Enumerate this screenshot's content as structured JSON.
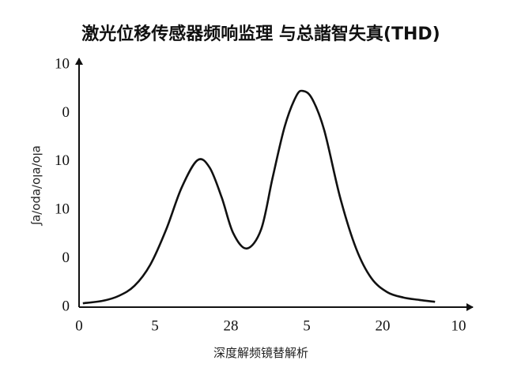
{
  "chart_data": {
    "type": "line",
    "title": "激光位移传感器频响监理 与总諧智失真(THD)",
    "x_label": "深度解频镜替解析",
    "y_label": "ɐlo/ɐlo/ɐpo/ɐʃ",
    "xlim": [
      0,
      5
    ],
    "ylim": [
      0,
      5
    ],
    "xticks": [
      {
        "value": 0,
        "label": "0"
      },
      {
        "value": 1,
        "label": "5"
      },
      {
        "value": 2,
        "label": "28"
      },
      {
        "value": 3,
        "label": "5"
      },
      {
        "value": 4,
        "label": "20"
      },
      {
        "value": 5,
        "label": "10"
      }
    ],
    "yticks": [
      {
        "value": 0,
        "label": "0"
      },
      {
        "value": 1,
        "label": "0"
      },
      {
        "value": 2,
        "label": "10"
      },
      {
        "value": 3,
        "label": "10"
      },
      {
        "value": 4,
        "label": "0"
      },
      {
        "value": 5,
        "label": "10"
      }
    ],
    "color": "#111111",
    "x": [
      0.05,
      0.31,
      0.52,
      0.73,
      0.94,
      1.15,
      1.35,
      1.56,
      1.72,
      1.88,
      2.03,
      2.21,
      2.4,
      2.55,
      2.71,
      2.86,
      2.95,
      3.07,
      3.23,
      3.44,
      3.65,
      3.85,
      4.06,
      4.27,
      4.48,
      4.69
    ],
    "values": [
      0.08,
      0.13,
      0.23,
      0.44,
      0.88,
      1.61,
      2.46,
      3.03,
      2.88,
      2.26,
      1.53,
      1.21,
      1.61,
      2.67,
      3.73,
      4.35,
      4.46,
      4.3,
      3.65,
      2.26,
      1.21,
      0.6,
      0.31,
      0.2,
      0.15,
      0.11
    ]
  }
}
